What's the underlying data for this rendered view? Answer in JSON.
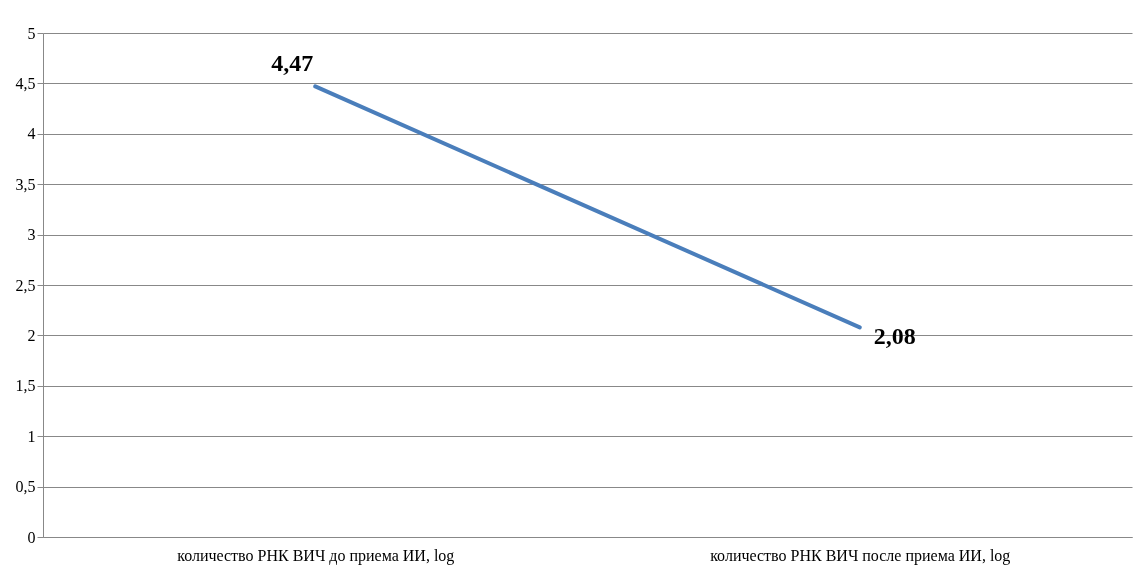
{
  "chart_data": {
    "type": "line",
    "categories": [
      "количество РНК ВИЧ до приема ИИ, log",
      "количество РНК ВИЧ после приема ИИ, log"
    ],
    "values": [
      4.47,
      2.08
    ],
    "color": "#4a7ebb",
    "value_labels": [
      "4,47",
      "2,08"
    ],
    "ylim": [
      0,
      5
    ],
    "yticks": [
      0,
      {
        "value": 0.5,
        "label": "0,5"
      },
      1,
      {
        "value": 1.5,
        "label": "1,5"
      },
      2,
      {
        "value": 2.5,
        "label": "2,5"
      },
      3,
      {
        "value": 3.5,
        "label": "3,5"
      },
      4,
      {
        "value": 4.5,
        "label": "4,5"
      },
      5
    ],
    "grid": "y",
    "marker": "none"
  }
}
